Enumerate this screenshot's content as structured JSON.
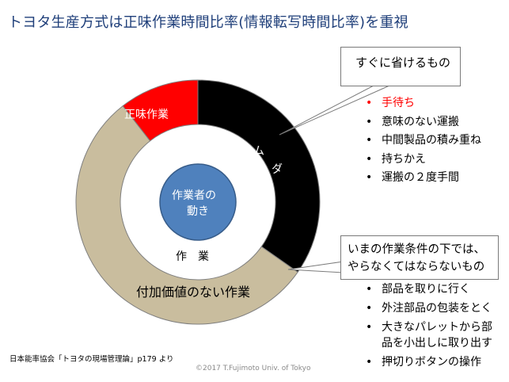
{
  "title": "トヨタ生産方式は正味作業時間比率(情報転写時間比率)を重視",
  "diagram": {
    "center_label_line1": "作業者の",
    "center_label_line2": "動き",
    "inner_label": "作　業",
    "segments": {
      "muda_label_1": "ム",
      "muda_label_2": "ダ",
      "net_work_label": "正味作業",
      "non_value_label": "付加価値のない作業"
    },
    "colors": {
      "muda": "#000000",
      "net_work": "#ff0000",
      "non_value": "#c9bd9e",
      "center": "#4f81bd"
    }
  },
  "callout_waste": {
    "title": "すぐに省けるもの",
    "items": [
      "手待ち",
      "意味のない運搬",
      "中間製品の積み重ね",
      "持ちかえ",
      "運搬の２度手間"
    ]
  },
  "callout_nonvalue": {
    "title_line1": "いまの作業条件の下では、",
    "title_line2": "やらなくてはならないもの",
    "items": [
      "部品を取りに行く",
      "外注部品の包装をとく",
      "大きなパレットから部品を小出しに取り出す",
      "押切りボタンの操作"
    ],
    "item3_line1": "大きなパレットから部",
    "item3_line2": "品を小出しに取り出す"
  },
  "footer": {
    "source": "日本能率協会「トヨタの現場管理論」p179 より",
    "copyright": "©2017 T.Fujimoto Univ. of Tokyo"
  }
}
